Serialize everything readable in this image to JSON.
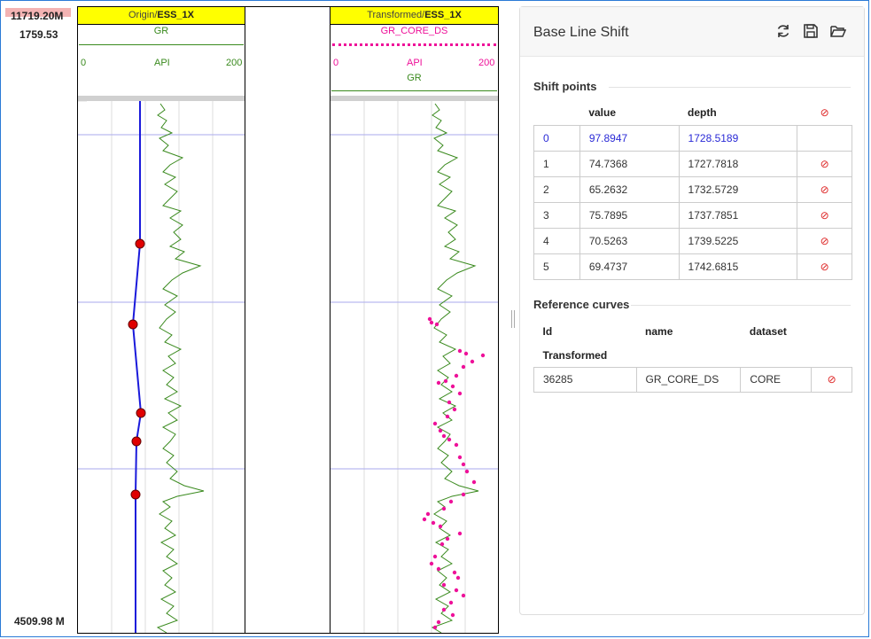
{
  "depth": {
    "top_value": "11719.20M",
    "top_value2": "1759.53",
    "bottom_value": "4509.98 M"
  },
  "origin_track": {
    "title_prefix": "Origin/",
    "title_bold": "ESS_1X",
    "curve": "GR",
    "scale_min": "0",
    "scale_unit": "API",
    "scale_max": "200",
    "curve_color": "#3a8a1e"
  },
  "transformed_track": {
    "title_prefix": "Transformed/",
    "title_bold": "ESS_1X",
    "curve": "GR_CORE_DS",
    "curve_color": "#ee1199",
    "scale_min": "0",
    "scale_unit": "API",
    "scale_max": "200",
    "curve2": "GR",
    "curve2_color": "#3a8a1e"
  },
  "panel": {
    "title": "Base Line Shift",
    "shift_section": "Shift points",
    "shift_headers": {
      "value": "value",
      "depth": "depth"
    },
    "shift_points": [
      {
        "idx": "0",
        "value": "97.8947",
        "depth": "1728.5189",
        "selected": true
      },
      {
        "idx": "1",
        "value": "74.7368",
        "depth": "1727.7818",
        "selected": false
      },
      {
        "idx": "2",
        "value": "65.2632",
        "depth": "1732.5729",
        "selected": false
      },
      {
        "idx": "3",
        "value": "75.7895",
        "depth": "1737.7851",
        "selected": false
      },
      {
        "idx": "4",
        "value": "70.5263",
        "depth": "1739.5225",
        "selected": false
      },
      {
        "idx": "5",
        "value": "69.4737",
        "depth": "1742.6815",
        "selected": false
      }
    ],
    "ref_section": "Reference curves",
    "ref_headers": {
      "id": "Id",
      "name": "name",
      "dataset": "dataset"
    },
    "ref_group": "Transformed",
    "ref_rows": [
      {
        "id": "36285",
        "name": "GR_CORE_DS",
        "dataset": "CORE"
      }
    ]
  },
  "colors": {
    "baseline": "#1a1adb",
    "point": "#e00000",
    "accent_blue": "#2a2ad6",
    "delete_red": "#d22222"
  }
}
